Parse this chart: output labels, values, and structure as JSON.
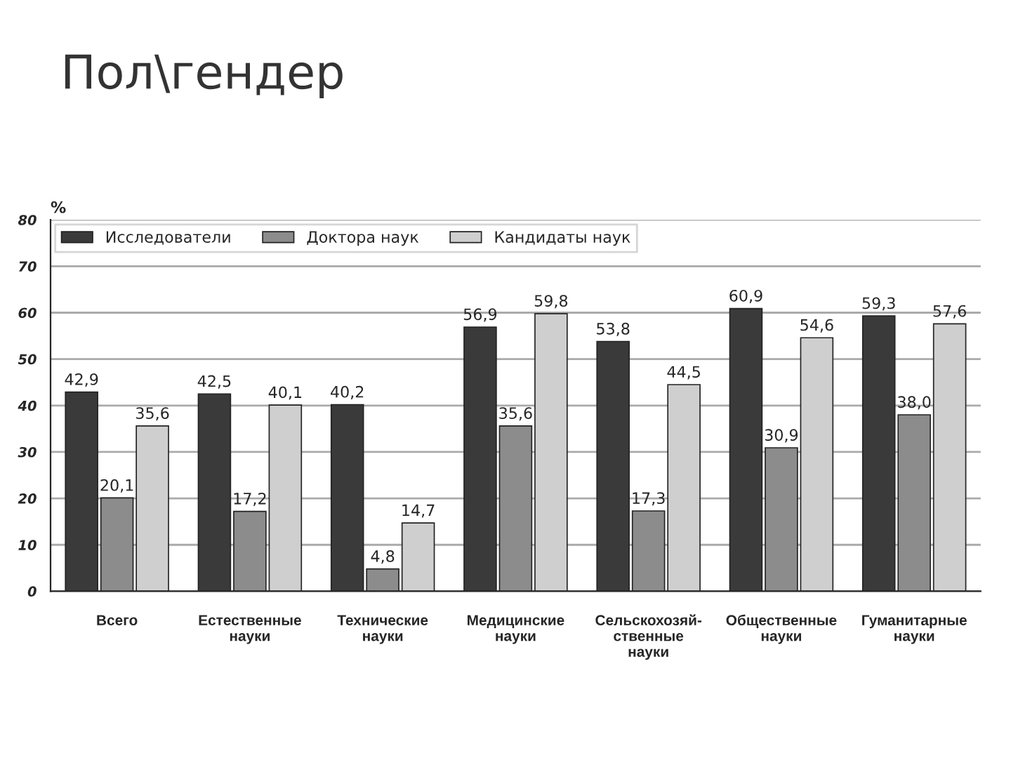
{
  "chart_data": {
    "type": "bar",
    "title": "Пол\\гендер",
    "ylabel": "%",
    "categories": [
      "Всего",
      "Естественные\nнауки",
      "Технические\nнауки",
      "Медицинские\nнауки",
      "Сельскохозяй-\nственные\nнауки",
      "Общественные\nнауки",
      "Гуманитарные\nнауки"
    ],
    "series": [
      {
        "name": "Исследователи",
        "color": "#3a3a3a",
        "values": [
          42.9,
          42.5,
          40.2,
          56.9,
          53.8,
          60.9,
          59.3
        ],
        "value_labels": [
          "42,9",
          "42,5",
          "40,2",
          "56,9",
          "53,8",
          "60,9",
          "59,3"
        ]
      },
      {
        "name": "Доктора наук",
        "color": "#8c8c8c",
        "values": [
          20.1,
          17.2,
          4.8,
          35.6,
          17.3,
          30.9,
          38.0
        ],
        "value_labels": [
          "20,1",
          "17,2",
          "4,8",
          "35,6",
          "17,3",
          "30,9",
          "38,0"
        ]
      },
      {
        "name": "Кандидаты наук",
        "color": "#cfcfcf",
        "values": [
          35.6,
          40.1,
          14.7,
          59.8,
          44.5,
          54.6,
          57.6
        ],
        "value_labels": [
          "35,6",
          "40,1",
          "14,7",
          "59,8",
          "44,5",
          "54,6",
          "57,6"
        ]
      }
    ],
    "ylim": [
      0,
      80
    ],
    "yticks": [
      0,
      10,
      20,
      30,
      40,
      50,
      60,
      70,
      80
    ],
    "grid": "y",
    "legend": "top left"
  }
}
